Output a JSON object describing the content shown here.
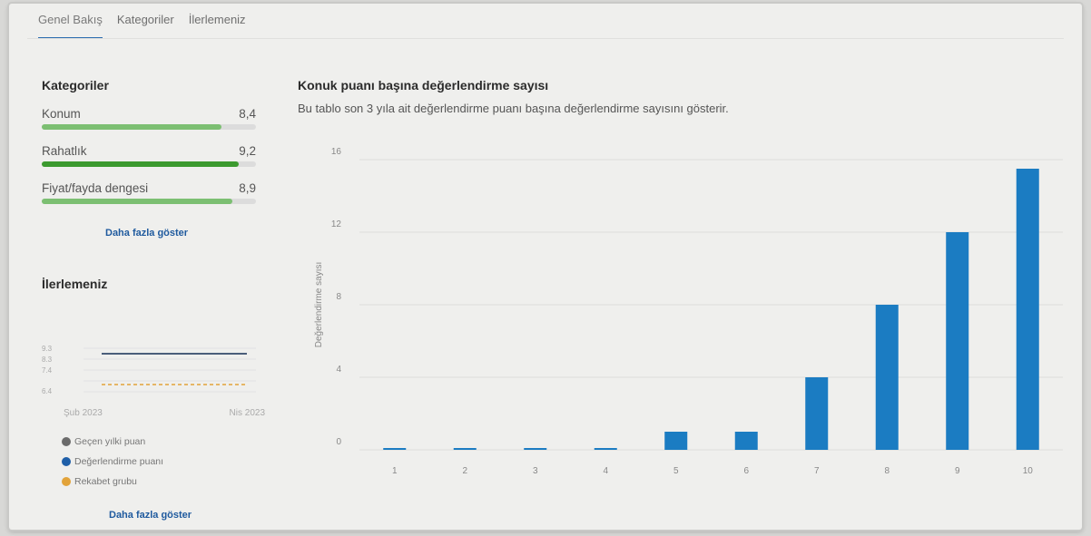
{
  "tabs": [
    {
      "label": "Genel Bakış",
      "active": true
    },
    {
      "label": "Kategoriler",
      "active": false
    },
    {
      "label": "İlerlemeniz",
      "active": false
    }
  ],
  "categories_section": {
    "title": "Kategoriler",
    "items": [
      {
        "label": "Konum",
        "value": "8,4",
        "score": 8.4,
        "color": "#7cbf72"
      },
      {
        "label": "Rahatlık",
        "value": "9,2",
        "score": 9.2,
        "color": "#3c9a2f"
      },
      {
        "label": "Fiyat/fayda dengesi",
        "value": "8,9",
        "score": 8.9,
        "color": "#7cbf72"
      }
    ],
    "more_label": "Daha fazla göster"
  },
  "progress_section": {
    "title": "İlerlemeniz",
    "y_ticks": [
      "9.3",
      "8.3",
      "7.4",
      "6.4"
    ],
    "x_start": "Şub 2023",
    "x_end": "Nis 2023",
    "legend": [
      {
        "label": "Geçen yılki puan",
        "color": "#6b6b6b"
      },
      {
        "label": "Değerlendirme puanı",
        "color": "#1f5fa8"
      },
      {
        "label": "Rekabet grubu",
        "color": "#e2a33a"
      }
    ],
    "more_label": "Daha fazla göster"
  },
  "chart_title": "Konuk puanı başına değerlendirme sayısı",
  "chart_subtitle": "Bu tablo son 3 yıla ait değerlendirme puanı başına değerlendirme sayısını gösterir.",
  "chart_data": {
    "type": "bar",
    "categories": [
      "1",
      "2",
      "3",
      "4",
      "5",
      "6",
      "7",
      "8",
      "9",
      "10"
    ],
    "values": [
      0,
      0,
      0,
      0,
      1,
      1,
      4,
      8,
      12,
      15.5
    ],
    "ylabel": "Değerlendirme sayısı",
    "xlabel": "",
    "ylim": [
      0,
      16
    ],
    "yticks": [
      0,
      4,
      8,
      12,
      16
    ],
    "bar_color": "#1b7cc2",
    "grid": true
  }
}
